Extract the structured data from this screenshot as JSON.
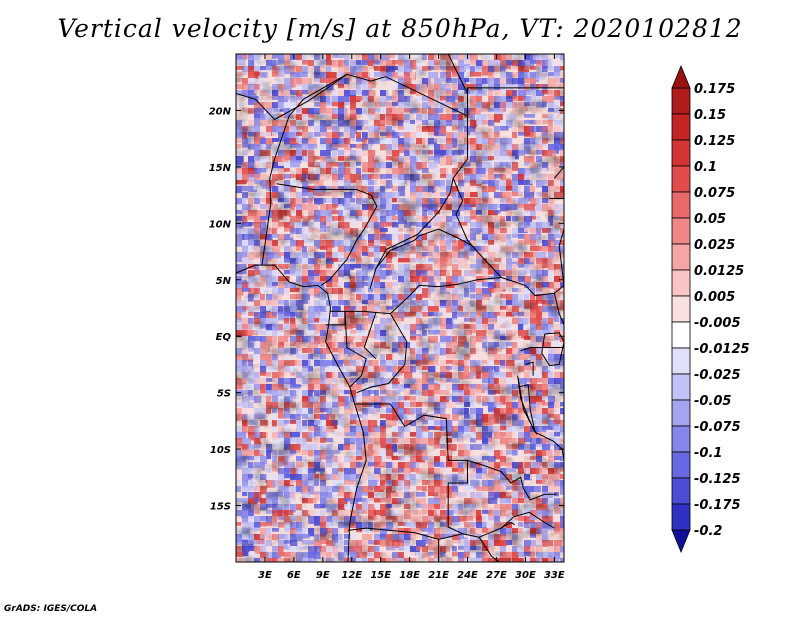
{
  "title": "Vertical velocity [m/s] at 850hPa, VT: 2020102812",
  "credit": "GrADS: IGES/COLA",
  "map": {
    "lon_range": [
      0,
      34
    ],
    "lat_range": [
      -20,
      25
    ],
    "lat_ticks": [
      {
        "value": 20,
        "label": "20N"
      },
      {
        "value": 15,
        "label": "15N"
      },
      {
        "value": 10,
        "label": "10N"
      },
      {
        "value": 5,
        "label": "5N"
      },
      {
        "value": 0,
        "label": "EQ"
      },
      {
        "value": -5,
        "label": "5S"
      },
      {
        "value": -10,
        "label": "10S"
      },
      {
        "value": -15,
        "label": "15S"
      }
    ],
    "lon_ticks": [
      {
        "value": 3,
        "label": "3E"
      },
      {
        "value": 6,
        "label": "6E"
      },
      {
        "value": 9,
        "label": "9E"
      },
      {
        "value": 12,
        "label": "12E"
      },
      {
        "value": 15,
        "label": "15E"
      },
      {
        "value": 18,
        "label": "18E"
      },
      {
        "value": 21,
        "label": "21E"
      },
      {
        "value": 24,
        "label": "24E"
      },
      {
        "value": 27,
        "label": "27E"
      },
      {
        "value": 30,
        "label": "30E"
      },
      {
        "value": 33,
        "label": "33E"
      }
    ]
  },
  "colorbar": {
    "levels": [
      {
        "label": "0.175",
        "color": "#b01c1c"
      },
      {
        "label": "0.15",
        "color": "#c42424"
      },
      {
        "label": "0.125",
        "color": "#d63434"
      },
      {
        "label": "0.1",
        "color": "#e24c4c"
      },
      {
        "label": "0.075",
        "color": "#e96a6a"
      },
      {
        "label": "0.05",
        "color": "#ef8787"
      },
      {
        "label": "0.025",
        "color": "#f4a6a6"
      },
      {
        "label": "0.0125",
        "color": "#f8c4c4"
      },
      {
        "label": "0.005",
        "color": "#fbe0e0"
      },
      {
        "label": "-0.005",
        "color": "#ffffff"
      },
      {
        "label": "-0.0125",
        "color": "#e0e0fb"
      },
      {
        "label": "-0.025",
        "color": "#c2c2f6"
      },
      {
        "label": "-0.05",
        "color": "#a4a4f0"
      },
      {
        "label": "-0.075",
        "color": "#8686ea"
      },
      {
        "label": "-0.1",
        "color": "#6868e2"
      },
      {
        "label": "-0.125",
        "color": "#4c4cd6"
      },
      {
        "label": "-0.175",
        "color": "#3030c4"
      },
      {
        "label": "-0.2",
        "color": "#1c1cb0"
      }
    ],
    "max_color": "#9a1010",
    "min_color": "#10109a"
  }
}
